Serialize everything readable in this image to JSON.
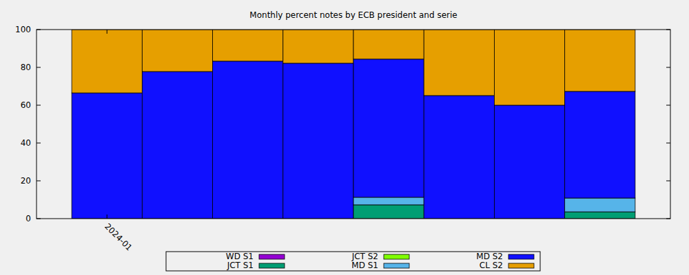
{
  "chart_data": {
    "type": "bar",
    "title": "Monthly percent notes by ECB president and serie",
    "stacked": true,
    "legend": "bottom",
    "categories": [
      "2024-01",
      null,
      null,
      null,
      null,
      null,
      null,
      null
    ],
    "series": [
      {
        "name": "WD S1",
        "color": "#9400d3",
        "values": [
          0,
          0,
          0,
          0,
          0,
          0,
          0,
          0
        ]
      },
      {
        "name": "JCT S1",
        "color": "#009e73",
        "values": [
          0,
          0,
          0,
          0,
          7.3,
          0,
          0,
          3.6
        ]
      },
      {
        "name": "JCT S2",
        "color": "#7fff00",
        "values": [
          0,
          0,
          0,
          0,
          0,
          0,
          0,
          0
        ]
      },
      {
        "name": "MD S1",
        "color": "#56b4e9",
        "values": [
          0,
          0,
          0,
          0,
          4.0,
          0,
          0,
          7.3
        ]
      },
      {
        "name": "MD S2",
        "color": "#1010ff",
        "values": [
          66.5,
          77.8,
          83.3,
          82.2,
          73.1,
          65.1,
          60,
          56.4
        ]
      },
      {
        "name": "CL S2",
        "color": "#e69f00",
        "values": [
          33.5,
          22.2,
          16.7,
          17.8,
          15.6,
          34.9,
          40,
          32.7
        ]
      }
    ],
    "xlim": [
      -1,
      8
    ],
    "ylim": [
      0,
      100
    ],
    "yticks": [
      0,
      20,
      40,
      60,
      80,
      100
    ]
  }
}
